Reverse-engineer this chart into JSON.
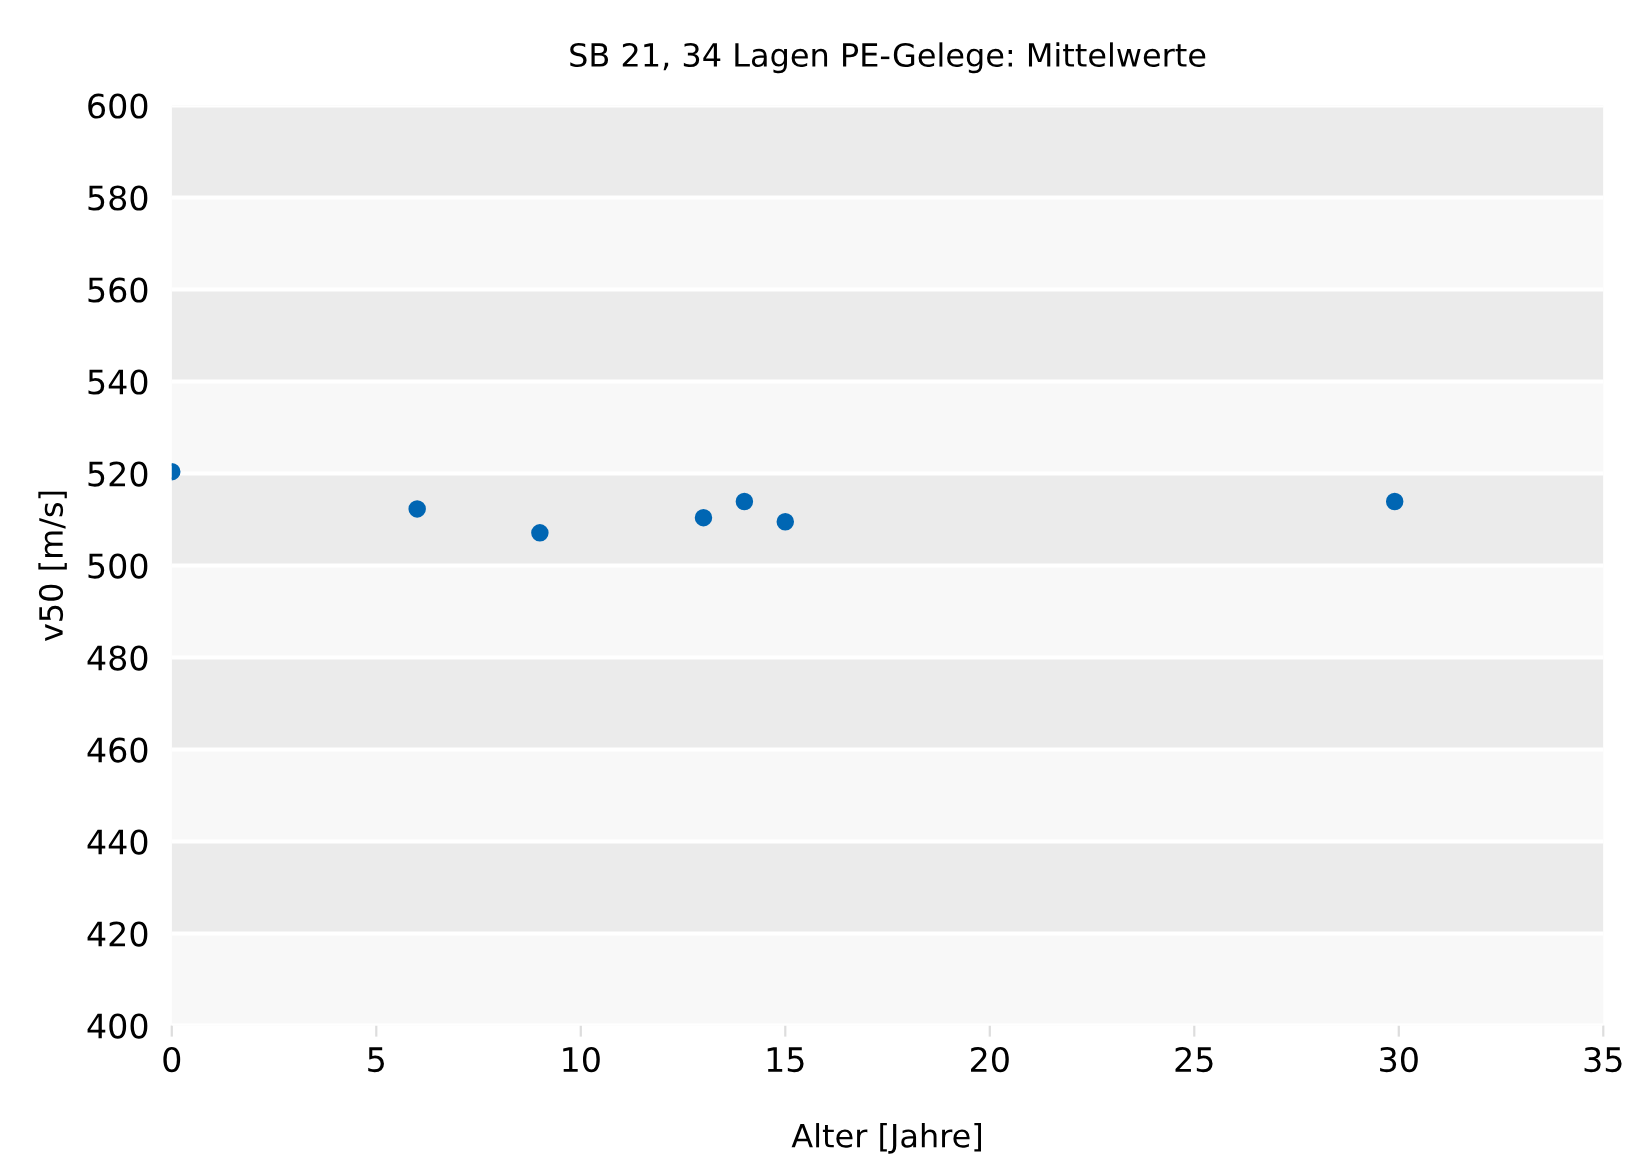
{
  "chart_data": {
    "type": "scatter",
    "title": "SB 21, 34 Lagen PE-Gelege: Mittelwerte",
    "xlabel": "Alter [Jahre]",
    "ylabel": "v50 [m/s]",
    "x": [
      0,
      6,
      9,
      13,
      14,
      15,
      29.9
    ],
    "series": [
      {
        "color": "#0066b3",
        "values": [
          520.4,
          512.3,
          507.1,
          510.4,
          513.9,
          509.5,
          513.9
        ]
      }
    ],
    "xlim": [
      0,
      35
    ],
    "xticks": [
      0,
      5,
      10,
      15,
      20,
      25,
      30,
      35
    ],
    "ylim": [
      400,
      600
    ],
    "yticks": [
      400,
      420,
      440,
      460,
      480,
      500,
      520,
      540,
      560,
      580,
      600
    ],
    "grid": "y",
    "marker": "circle",
    "legend": false
  }
}
